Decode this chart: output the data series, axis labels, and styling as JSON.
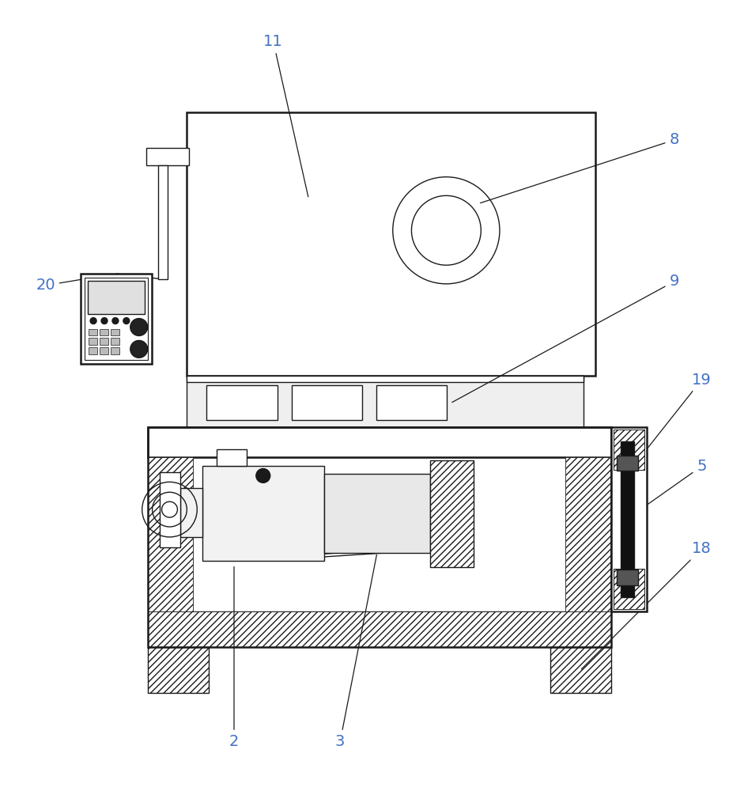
{
  "bg_color": "#ffffff",
  "line_color": "#1a1a1a",
  "label_color": "#4472C4",
  "fig_width": 9.22,
  "fig_height": 10.0,
  "dpi": 100,
  "xlim": [
    0,
    922
  ],
  "ylim": [
    0,
    1000
  ]
}
